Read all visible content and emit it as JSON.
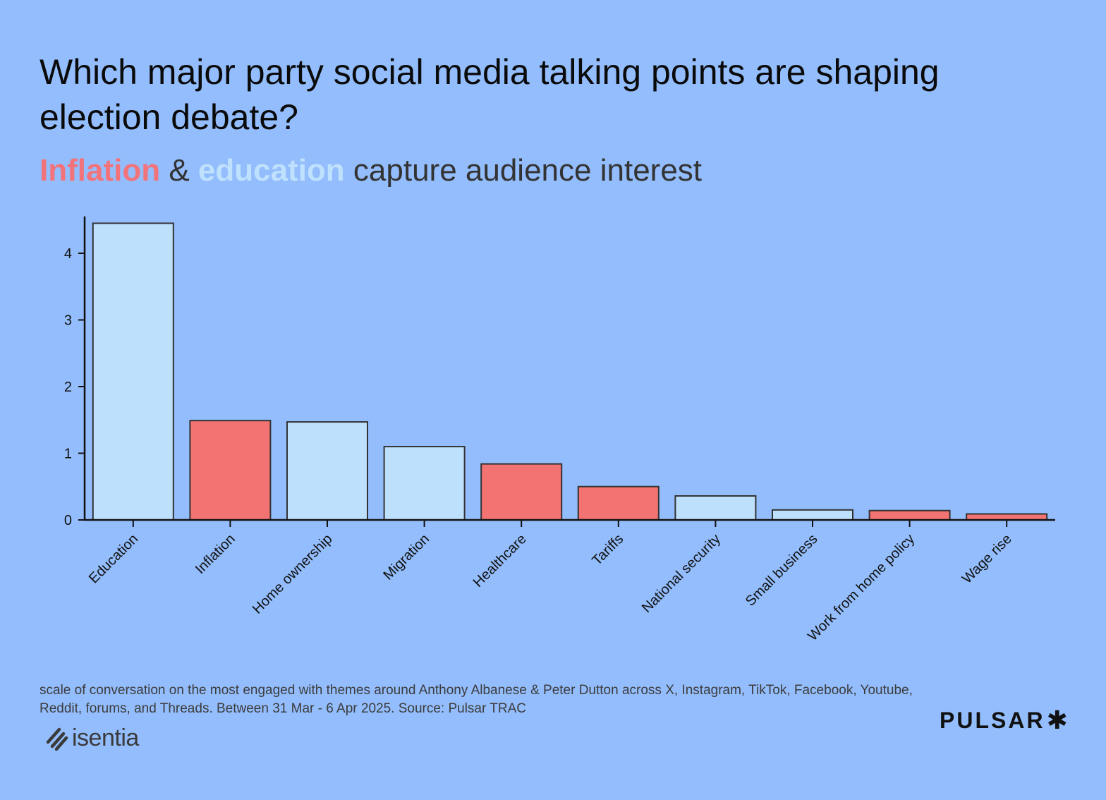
{
  "header": {
    "title": "Which major party social media talking points are shaping election debate?",
    "subtitle_part1": "Inflation",
    "subtitle_part2": " & ",
    "subtitle_part3": "education",
    "subtitle_part4": " capture audience interest"
  },
  "colors": {
    "background": "#93bdfc",
    "education_series": "#bde0fd",
    "inflation_series": "#f37373",
    "bar_outline": "#333333"
  },
  "chart_data": {
    "type": "bar",
    "categories": [
      "Education",
      "Inflation",
      "Home ownership",
      "Migration",
      "Healthcare",
      "Tariffs",
      "National security",
      "Small business",
      "Work from home policy",
      "Wage rise"
    ],
    "values": [
      4.45,
      1.49,
      1.47,
      1.1,
      0.84,
      0.5,
      0.36,
      0.15,
      0.14,
      0.09
    ],
    "bar_color_groups": [
      "education",
      "inflation",
      "education",
      "education",
      "inflation",
      "inflation",
      "education",
      "education",
      "inflation",
      "inflation"
    ],
    "title": "",
    "xlabel": "",
    "ylabel": "",
    "ylim": [
      0,
      4.5
    ],
    "yticks": [
      0,
      1,
      2,
      3,
      4
    ],
    "grid": false,
    "legend": "none"
  },
  "footer": {
    "note": "scale of conversation on the most engaged with themes around Anthony Albanese & Peter Dutton across X, Instagram, TikTok, Facebook, Youtube, Reddit, forums, and Threads. Between 31 Mar - 6 Apr 2025. Source: Pulsar TRAC",
    "logo_left": "isentia",
    "logo_right": "PULSAR"
  }
}
